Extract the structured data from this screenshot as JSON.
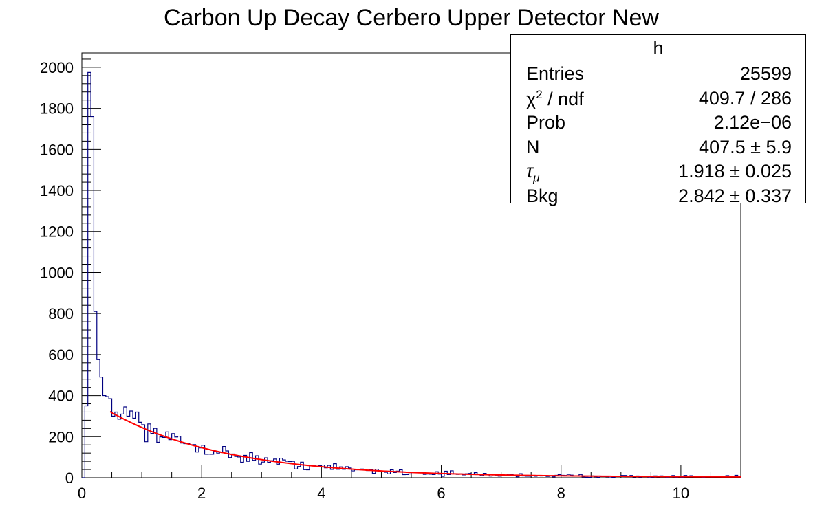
{
  "chart_data": {
    "type": "histogram",
    "title": "Carbon Up Decay Cerbero Upper Detector New",
    "xlabel": "",
    "ylabel": "",
    "xlim": [
      0,
      11
    ],
    "ylim": [
      0,
      2070
    ],
    "x_ticks": [
      "0",
      "2",
      "4",
      "6",
      "8",
      "10"
    ],
    "y_ticks": [
      "0",
      "200",
      "400",
      "600",
      "800",
      "1000",
      "1200",
      "1400",
      "1600",
      "1800",
      "2000"
    ],
    "bin_width": 0.05,
    "histogram_color": "#000080",
    "fit_color": "#ff0000",
    "bins_start": [
      {
        "x": 0.0,
        "y": 0
      },
      {
        "x": 0.05,
        "y": 350
      },
      {
        "x": 0.1,
        "y": 1975
      },
      {
        "x": 0.15,
        "y": 1760
      },
      {
        "x": 0.2,
        "y": 810
      },
      {
        "x": 0.25,
        "y": 575
      },
      {
        "x": 0.3,
        "y": 490
      },
      {
        "x": 0.35,
        "y": 400
      },
      {
        "x": 0.4,
        "y": 395
      },
      {
        "x": 0.45,
        "y": 385
      },
      {
        "x": 0.5,
        "y": 300
      },
      {
        "x": 0.55,
        "y": 320
      },
      {
        "x": 0.6,
        "y": 285
      },
      {
        "x": 0.65,
        "y": 310
      },
      {
        "x": 0.7,
        "y": 345
      },
      {
        "x": 0.75,
        "y": 300
      },
      {
        "x": 0.8,
        "y": 325
      },
      {
        "x": 0.85,
        "y": 290
      },
      {
        "x": 0.9,
        "y": 320
      },
      {
        "x": 0.95,
        "y": 270
      }
    ],
    "fit": {
      "function": "N*exp(-t/tau_mu) + Bkg",
      "range": [
        0.47,
        11
      ],
      "N": 407.5,
      "tau_mu": 1.918,
      "Bkg": 2.842
    },
    "stats": {
      "title": "h",
      "rows": [
        {
          "label": "Entries",
          "value": "25599"
        },
        {
          "label": "χ² / ndf",
          "value": "409.7 / 286"
        },
        {
          "label": "Prob",
          "value": "2.12e−06"
        },
        {
          "label": "N",
          "value": "407.5 ± 5.9"
        },
        {
          "label": "τμ",
          "value": "1.918 ± 0.025"
        },
        {
          "label": "Bkg",
          "value": "2.842 ± 0.337"
        }
      ]
    }
  }
}
